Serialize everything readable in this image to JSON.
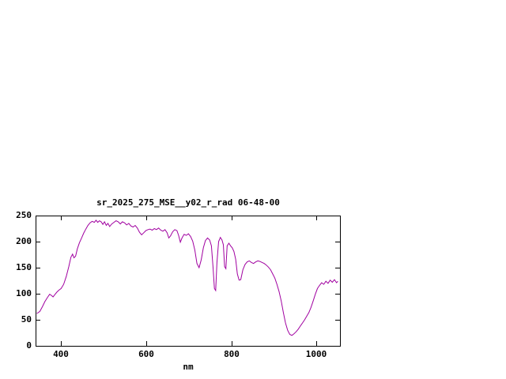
{
  "page": {
    "background": "#ffffff"
  },
  "chart_data": {
    "type": "line",
    "title": "sr_2025_275_MSE__y02_r_rad 06-48-00",
    "xlabel": "nm",
    "ylabel": "",
    "xlim": [
      340,
      1055
    ],
    "ylim": [
      0,
      250
    ],
    "xticks": [
      400,
      600,
      800,
      1000
    ],
    "yticks": [
      0,
      50,
      100,
      150,
      200,
      250
    ],
    "grid": false,
    "legend": "none",
    "line_color": "#a000a0",
    "border_color": "#000000",
    "points": [
      [
        343,
        62
      ],
      [
        350,
        66
      ],
      [
        356,
        75
      ],
      [
        362,
        85
      ],
      [
        368,
        93
      ],
      [
        373,
        99
      ],
      [
        377,
        97
      ],
      [
        381,
        94
      ],
      [
        385,
        98
      ],
      [
        390,
        103
      ],
      [
        395,
        107
      ],
      [
        400,
        110
      ],
      [
        406,
        118
      ],
      [
        412,
        133
      ],
      [
        418,
        152
      ],
      [
        423,
        170
      ],
      [
        427,
        176
      ],
      [
        430,
        169
      ],
      [
        434,
        172
      ],
      [
        438,
        186
      ],
      [
        443,
        198
      ],
      [
        448,
        207
      ],
      [
        453,
        216
      ],
      [
        458,
        224
      ],
      [
        463,
        231
      ],
      [
        468,
        236
      ],
      [
        473,
        239
      ],
      [
        478,
        237
      ],
      [
        482,
        241
      ],
      [
        486,
        237
      ],
      [
        490,
        240
      ],
      [
        494,
        238
      ],
      [
        498,
        233
      ],
      [
        502,
        238
      ],
      [
        506,
        231
      ],
      [
        510,
        235
      ],
      [
        514,
        229
      ],
      [
        519,
        234
      ],
      [
        524,
        237
      ],
      [
        529,
        240
      ],
      [
        534,
        238
      ],
      [
        539,
        234
      ],
      [
        544,
        238
      ],
      [
        549,
        236
      ],
      [
        554,
        232
      ],
      [
        559,
        235
      ],
      [
        564,
        230
      ],
      [
        569,
        228
      ],
      [
        574,
        231
      ],
      [
        579,
        226
      ],
      [
        584,
        218
      ],
      [
        589,
        213
      ],
      [
        594,
        217
      ],
      [
        599,
        221
      ],
      [
        604,
        223
      ],
      [
        609,
        224
      ],
      [
        614,
        222
      ],
      [
        619,
        225
      ],
      [
        624,
        223
      ],
      [
        629,
        226
      ],
      [
        634,
        222
      ],
      [
        639,
        220
      ],
      [
        644,
        223
      ],
      [
        649,
        217
      ],
      [
        653,
        207
      ],
      [
        657,
        211
      ],
      [
        662,
        219
      ],
      [
        667,
        223
      ],
      [
        672,
        221
      ],
      [
        676,
        212
      ],
      [
        680,
        199
      ],
      [
        684,
        207
      ],
      [
        689,
        214
      ],
      [
        694,
        212
      ],
      [
        699,
        215
      ],
      [
        704,
        210
      ],
      [
        709,
        201
      ],
      [
        714,
        184
      ],
      [
        719,
        158
      ],
      [
        724,
        150
      ],
      [
        729,
        165
      ],
      [
        734,
        188
      ],
      [
        739,
        202
      ],
      [
        744,
        207
      ],
      [
        749,
        203
      ],
      [
        753,
        192
      ],
      [
        757,
        150
      ],
      [
        760,
        110
      ],
      [
        763,
        106
      ],
      [
        766,
        160
      ],
      [
        770,
        200
      ],
      [
        774,
        208
      ],
      [
        778,
        203
      ],
      [
        781,
        194
      ],
      [
        784,
        152
      ],
      [
        787,
        148
      ],
      [
        790,
        192
      ],
      [
        794,
        197
      ],
      [
        798,
        192
      ],
      [
        802,
        188
      ],
      [
        806,
        181
      ],
      [
        810,
        166
      ],
      [
        814,
        138
      ],
      [
        818,
        126
      ],
      [
        822,
        127
      ],
      [
        827,
        146
      ],
      [
        832,
        156
      ],
      [
        837,
        161
      ],
      [
        842,
        163
      ],
      [
        847,
        160
      ],
      [
        852,
        158
      ],
      [
        857,
        161
      ],
      [
        862,
        163
      ],
      [
        867,
        162
      ],
      [
        872,
        160
      ],
      [
        877,
        158
      ],
      [
        882,
        155
      ],
      [
        887,
        151
      ],
      [
        892,
        146
      ],
      [
        897,
        138
      ],
      [
        902,
        130
      ],
      [
        907,
        118
      ],
      [
        912,
        104
      ],
      [
        917,
        86
      ],
      [
        922,
        64
      ],
      [
        927,
        44
      ],
      [
        932,
        30
      ],
      [
        937,
        22
      ],
      [
        942,
        20
      ],
      [
        947,
        23
      ],
      [
        952,
        27
      ],
      [
        957,
        32
      ],
      [
        962,
        38
      ],
      [
        967,
        44
      ],
      [
        972,
        50
      ],
      [
        977,
        57
      ],
      [
        982,
        64
      ],
      [
        987,
        74
      ],
      [
        992,
        86
      ],
      [
        997,
        99
      ],
      [
        1002,
        110
      ],
      [
        1007,
        116
      ],
      [
        1012,
        121
      ],
      [
        1017,
        118
      ],
      [
        1022,
        124
      ],
      [
        1027,
        120
      ],
      [
        1032,
        126
      ],
      [
        1037,
        122
      ],
      [
        1042,
        127
      ],
      [
        1047,
        121
      ],
      [
        1050,
        124
      ]
    ]
  }
}
